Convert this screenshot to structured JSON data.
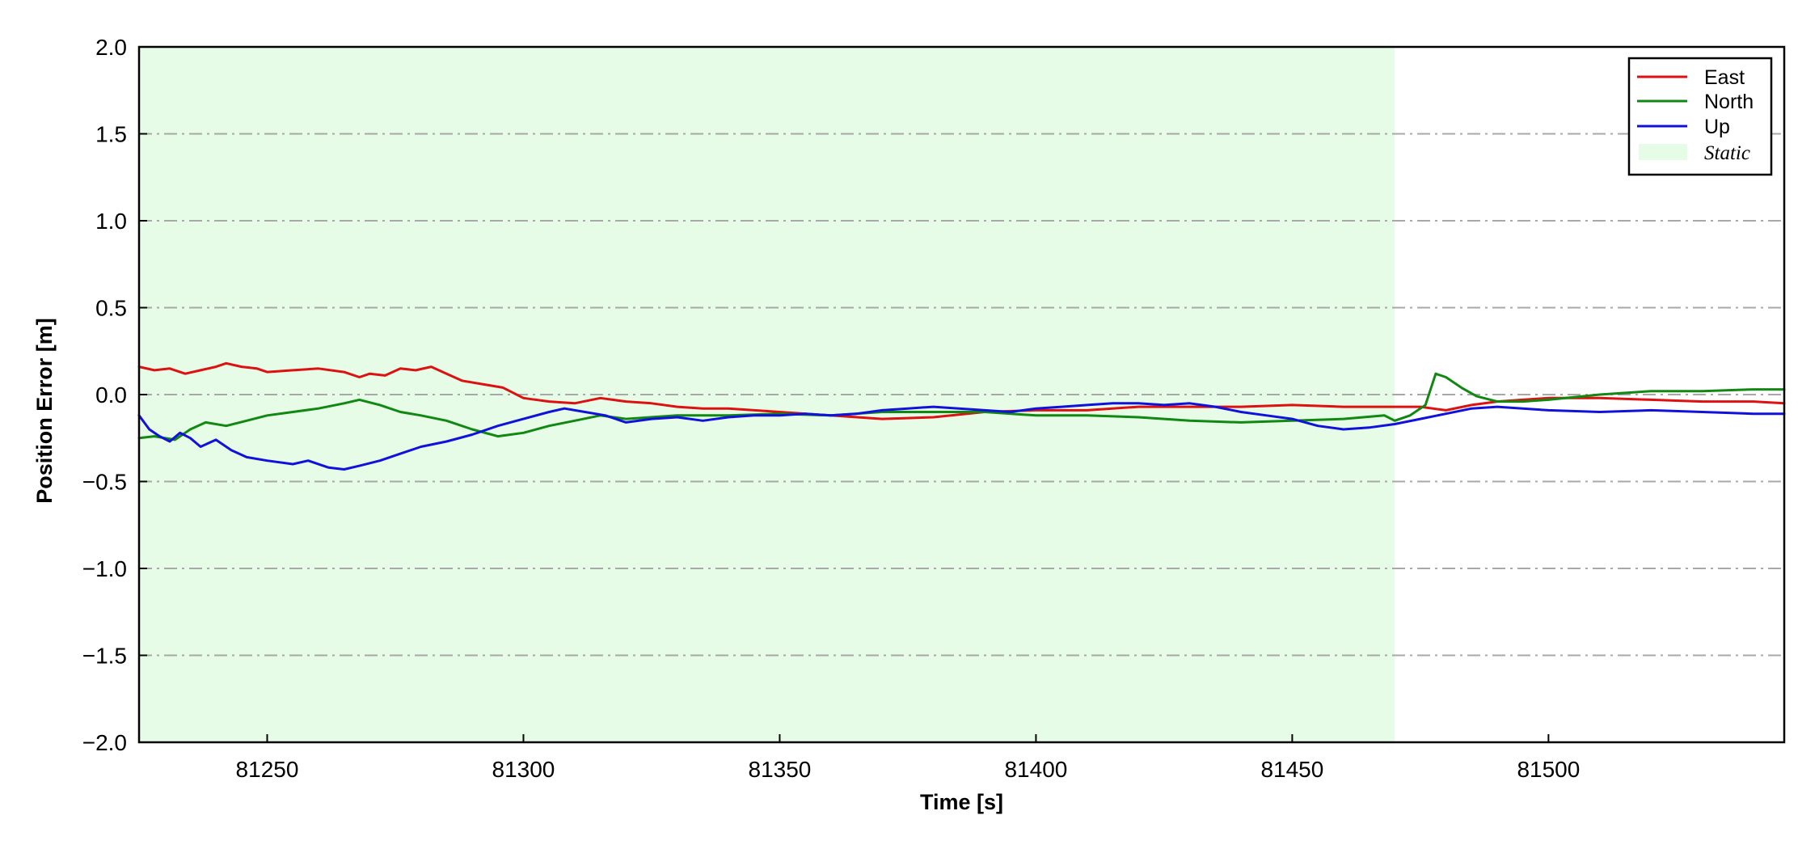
{
  "chart_data": {
    "type": "line",
    "xlabel": "Time [s]",
    "ylabel": "Position Error [m]",
    "xlim": [
      81225,
      81546
    ],
    "ylim": [
      -2.0,
      2.0
    ],
    "xticks": [
      81250,
      81300,
      81350,
      81400,
      81450,
      81500
    ],
    "xtick_labels": [
      "81250",
      "81300",
      "81350",
      "81400",
      "81450",
      "81500"
    ],
    "yticks": [
      -2.0,
      -1.5,
      -1.0,
      -0.5,
      0.0,
      0.5,
      1.0,
      1.5,
      2.0
    ],
    "ytick_labels": [
      "−2.0",
      "−1.5",
      "−1.0",
      "−0.5",
      "0.0",
      "0.5",
      "1.0",
      "1.5",
      "2.0"
    ],
    "grid": "horizontal dash-dot",
    "legend_position": "top-right",
    "shaded_region": {
      "label": "Static",
      "x_start": 81225,
      "x_end": 81470,
      "color": "#e6fce6"
    },
    "series": [
      {
        "name": "East",
        "color": "#dd1111",
        "x": [
          81225,
          81228,
          81231,
          81234,
          81237,
          81240,
          81242,
          81245,
          81248,
          81250,
          81255,
          81260,
          81265,
          81268,
          81270,
          81273,
          81276,
          81279,
          81282,
          81285,
          81288,
          81292,
          81296,
          81300,
          81305,
          81310,
          81315,
          81320,
          81325,
          81330,
          81335,
          81340,
          81350,
          81360,
          81370,
          81380,
          81390,
          81400,
          81410,
          81420,
          81430,
          81440,
          81450,
          81460,
          81470,
          81475,
          81480,
          81485,
          81490,
          81495,
          81500,
          81510,
          81520,
          81530,
          81540,
          81546
        ],
        "y": [
          0.16,
          0.14,
          0.15,
          0.12,
          0.14,
          0.16,
          0.18,
          0.16,
          0.15,
          0.13,
          0.14,
          0.15,
          0.13,
          0.1,
          0.12,
          0.11,
          0.15,
          0.14,
          0.16,
          0.12,
          0.08,
          0.06,
          0.04,
          -0.02,
          -0.04,
          -0.05,
          -0.02,
          -0.04,
          -0.05,
          -0.07,
          -0.08,
          -0.08,
          -0.1,
          -0.12,
          -0.14,
          -0.13,
          -0.1,
          -0.09,
          -0.09,
          -0.07,
          -0.07,
          -0.07,
          -0.06,
          -0.07,
          -0.07,
          -0.07,
          -0.09,
          -0.06,
          -0.04,
          -0.03,
          -0.02,
          -0.02,
          -0.03,
          -0.04,
          -0.04,
          -0.05
        ]
      },
      {
        "name": "North",
        "color": "#118811",
        "x": [
          81225,
          81228,
          81232,
          81235,
          81238,
          81242,
          81246,
          81250,
          81255,
          81260,
          81265,
          81268,
          81272,
          81276,
          81280,
          81285,
          81290,
          81295,
          81300,
          81305,
          81310,
          81315,
          81320,
          81330,
          81340,
          81350,
          81360,
          81370,
          81380,
          81390,
          81400,
          81410,
          81420,
          81430,
          81440,
          81450,
          81460,
          81468,
          81470,
          81473,
          81476,
          81478,
          81480,
          81483,
          81486,
          81490,
          81495,
          81500,
          81510,
          81520,
          81530,
          81540,
          81546
        ],
        "y": [
          -0.25,
          -0.24,
          -0.26,
          -0.2,
          -0.16,
          -0.18,
          -0.15,
          -0.12,
          -0.1,
          -0.08,
          -0.05,
          -0.03,
          -0.06,
          -0.1,
          -0.12,
          -0.15,
          -0.2,
          -0.24,
          -0.22,
          -0.18,
          -0.15,
          -0.12,
          -0.14,
          -0.12,
          -0.12,
          -0.11,
          -0.12,
          -0.1,
          -0.1,
          -0.1,
          -0.12,
          -0.12,
          -0.13,
          -0.15,
          -0.16,
          -0.15,
          -0.14,
          -0.12,
          -0.15,
          -0.12,
          -0.06,
          0.12,
          0.1,
          0.04,
          -0.01,
          -0.04,
          -0.04,
          -0.03,
          0.0,
          0.02,
          0.02,
          0.03,
          0.03
        ]
      },
      {
        "name": "Up",
        "color": "#1111dd",
        "x": [
          81225,
          81227,
          81229,
          81231,
          81233,
          81235,
          81237,
          81240,
          81243,
          81246,
          81250,
          81255,
          81258,
          81262,
          81265,
          81268,
          81272,
          81276,
          81280,
          81285,
          81290,
          81295,
          81300,
          81305,
          81308,
          81312,
          81316,
          81320,
          81325,
          81330,
          81335,
          81340,
          81345,
          81350,
          81355,
          81360,
          81365,
          81370,
          81375,
          81380,
          81385,
          81390,
          81395,
          81400,
          81405,
          81410,
          81415,
          81420,
          81425,
          81430,
          81435,
          81440,
          81445,
          81450,
          81455,
          81460,
          81465,
          81470,
          81475,
          81480,
          81485,
          81490,
          81500,
          81510,
          81520,
          81530,
          81540,
          81546
        ],
        "y": [
          -0.12,
          -0.2,
          -0.24,
          -0.27,
          -0.22,
          -0.25,
          -0.3,
          -0.26,
          -0.32,
          -0.36,
          -0.38,
          -0.4,
          -0.38,
          -0.42,
          -0.43,
          -0.41,
          -0.38,
          -0.34,
          -0.3,
          -0.27,
          -0.23,
          -0.18,
          -0.14,
          -0.1,
          -0.08,
          -0.1,
          -0.12,
          -0.16,
          -0.14,
          -0.13,
          -0.15,
          -0.13,
          -0.12,
          -0.12,
          -0.11,
          -0.12,
          -0.11,
          -0.09,
          -0.08,
          -0.07,
          -0.08,
          -0.09,
          -0.1,
          -0.08,
          -0.07,
          -0.06,
          -0.05,
          -0.05,
          -0.06,
          -0.05,
          -0.07,
          -0.1,
          -0.12,
          -0.14,
          -0.18,
          -0.2,
          -0.19,
          -0.17,
          -0.14,
          -0.11,
          -0.08,
          -0.07,
          -0.09,
          -0.1,
          -0.09,
          -0.1,
          -0.11,
          -0.11
        ]
      }
    ]
  }
}
